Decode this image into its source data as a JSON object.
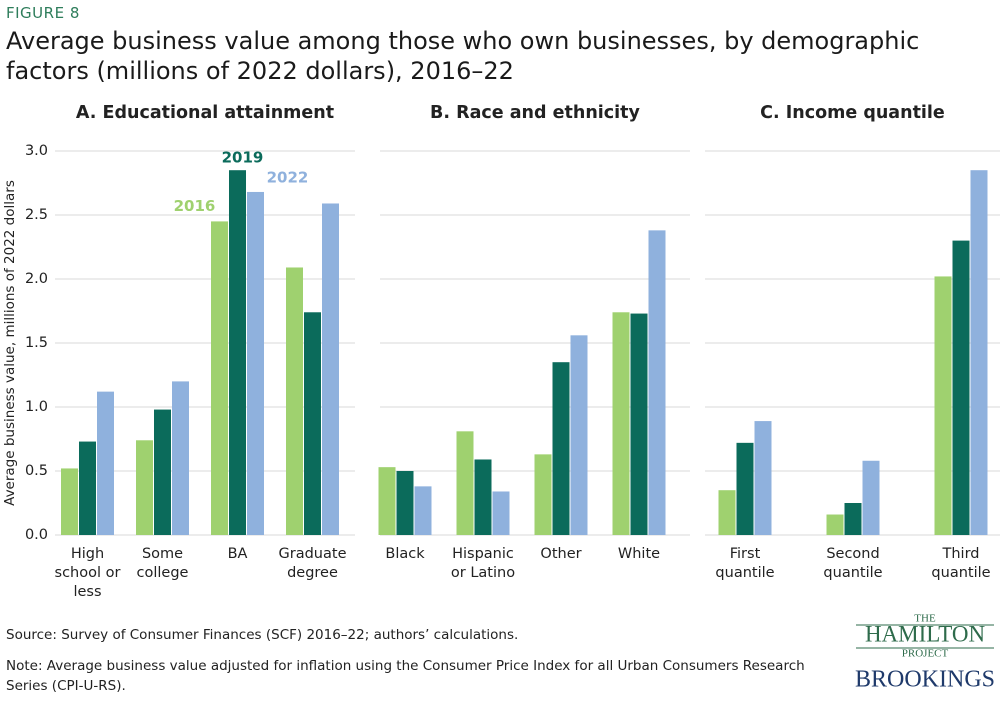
{
  "figure_label": "FIGURE 8",
  "title": "Average business value among those who own businesses, by demographic factors (millions of 2022 dollars), 2016–22",
  "chart_data": [
    {
      "type": "bar",
      "title": "A. Educational attainment",
      "ylabel": "Average business value, millions of 2022 dollars",
      "categories": [
        "High school or less",
        "Some college",
        "BA",
        "Graduate degree"
      ],
      "series": [
        {
          "name": "2016",
          "color": "#9fd16f",
          "values": [
            0.52,
            0.74,
            2.45,
            2.09
          ]
        },
        {
          "name": "2019",
          "color": "#0b6b5b",
          "values": [
            0.73,
            0.98,
            2.85,
            1.74
          ]
        },
        {
          "name": "2022",
          "color": "#8fb1dd",
          "values": [
            1.12,
            1.2,
            2.68,
            2.59
          ]
        }
      ],
      "ylim": [
        0,
        3
      ],
      "yticks": [
        {
          "value": 0,
          "label": "0.0"
        },
        {
          "value": 0.5,
          "label": "0.5"
        },
        {
          "value": 1,
          "label": "1.0"
        },
        {
          "value": 1.5,
          "label": "1.5"
        },
        {
          "value": 2,
          "label": "2.0"
        },
        {
          "value": 2.5,
          "label": "2.5"
        },
        {
          "value": 3,
          "label": "3.0"
        }
      ],
      "grid": true
    },
    {
      "type": "bar",
      "title": "B. Race and ethnicity",
      "categories": [
        "Black",
        "Hispanic or Latino",
        "Other",
        "White"
      ],
      "series": [
        {
          "color": "#9fd16f",
          "values": [
            0.53,
            0.81,
            0.63,
            1.74
          ]
        },
        {
          "color": "#0b6b5b",
          "values": [
            0.5,
            0.59,
            1.35,
            1.73
          ]
        },
        {
          "color": "#8fb1dd",
          "values": [
            0.38,
            0.34,
            1.56,
            2.38
          ]
        }
      ],
      "ylim": [
        0,
        3
      ],
      "yticks": [
        0,
        0.5,
        1,
        1.5,
        2,
        2.5,
        3
      ],
      "grid": true
    },
    {
      "type": "bar",
      "title": "C. Income quantile",
      "categories": [
        "First quantile",
        "Second quantile",
        "Third quantile"
      ],
      "series": [
        {
          "color": "#9fd16f",
          "values": [
            0.35,
            0.16,
            2.02
          ]
        },
        {
          "color": "#0b6b5b",
          "values": [
            0.72,
            0.25,
            2.3
          ]
        },
        {
          "color": "#8fb1dd",
          "values": [
            0.89,
            0.58,
            2.85
          ]
        }
      ],
      "ylim": [
        0,
        3
      ],
      "yticks": [
        0,
        0.5,
        1,
        1.5,
        2,
        2.5,
        3
      ],
      "grid": true
    }
  ],
  "source": "Source: Survey of Consumer Finances (SCF) 2016–22; authors’ calculations.",
  "note": "Note: Average business value adjusted for inflation using the Consumer Price Index for all Urban Consumers Research Series (CPI-U-RS).",
  "logo": {
    "the": "THE",
    "hamilton": "HAMILTON",
    "project": "PROJECT",
    "brookings": "BROOKINGS"
  }
}
